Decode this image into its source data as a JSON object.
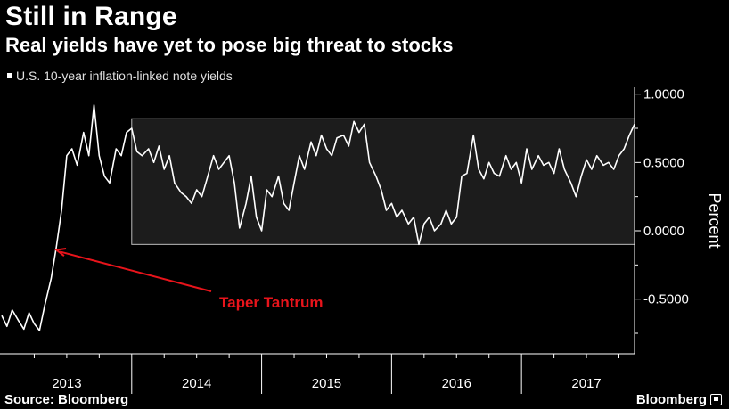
{
  "header": {
    "title": "Still in Range",
    "subtitle": "Real yields have yet to pose big threat to stocks"
  },
  "footer": {
    "source": "Source: Bloomberg",
    "brand": "Bloomberg"
  },
  "colors": {
    "background": "#000000",
    "line": "#ffffff",
    "annotation": "#e8141b",
    "range_band": "#1c1c1c",
    "range_border": "#bdbdbd"
  },
  "chart_data": {
    "type": "line",
    "title": "Still in Range",
    "subtitle": "Real yields have yet to pose big threat to stocks",
    "xlabel": "",
    "ylabel": "Percent",
    "ylim": [
      -0.9,
      1.05
    ],
    "xlim": [
      2013.0,
      2017.87
    ],
    "x_ticks": [
      2013,
      2014,
      2015,
      2016,
      2017
    ],
    "x_tick_labels": [
      "2013",
      "2014",
      "2015",
      "2016",
      "2017"
    ],
    "y_ticks": [
      1.0,
      0.5,
      0.0,
      -0.5
    ],
    "y_tick_labels": [
      "1.0000",
      "0.5000",
      "0.0000",
      "-0.5000"
    ],
    "grid": false,
    "legend": {
      "position": "top-left",
      "entries": [
        "U.S. 10-year inflation-linked note yields"
      ]
    },
    "range_band": {
      "x_start": 2014.0,
      "x_end": 2017.87,
      "y_low": -0.1,
      "y_high": 0.82
    },
    "annotations": [
      {
        "text": "Taper Tantrum",
        "arrow_to_x": 2013.42,
        "arrow_to_y": -0.14
      }
    ],
    "series": [
      {
        "name": "U.S. 10-year inflation-linked note yields",
        "x": [
          2013.0,
          2013.04,
          2013.08,
          2013.13,
          2013.17,
          2013.21,
          2013.25,
          2013.29,
          2013.33,
          2013.38,
          2013.42,
          2013.46,
          2013.5,
          2013.54,
          2013.58,
          2013.63,
          2013.67,
          2013.71,
          2013.75,
          2013.79,
          2013.83,
          2013.88,
          2013.92,
          2013.96,
          2014.0,
          2014.04,
          2014.08,
          2014.13,
          2014.17,
          2014.21,
          2014.25,
          2014.29,
          2014.33,
          2014.38,
          2014.42,
          2014.46,
          2014.5,
          2014.54,
          2014.58,
          2014.63,
          2014.67,
          2014.71,
          2014.75,
          2014.79,
          2014.83,
          2014.88,
          2014.92,
          2014.96,
          2015.0,
          2015.04,
          2015.08,
          2015.13,
          2015.17,
          2015.21,
          2015.25,
          2015.29,
          2015.33,
          2015.38,
          2015.42,
          2015.46,
          2015.5,
          2015.54,
          2015.58,
          2015.63,
          2015.67,
          2015.71,
          2015.75,
          2015.79,
          2015.83,
          2015.88,
          2015.92,
          2015.96,
          2016.0,
          2016.04,
          2016.08,
          2016.13,
          2016.17,
          2016.21,
          2016.25,
          2016.29,
          2016.33,
          2016.38,
          2016.42,
          2016.46,
          2016.5,
          2016.54,
          2016.58,
          2016.63,
          2016.67,
          2016.71,
          2016.75,
          2016.79,
          2016.83,
          2016.88,
          2016.92,
          2016.96,
          2017.0,
          2017.04,
          2017.08,
          2017.13,
          2017.17,
          2017.21,
          2017.25,
          2017.29,
          2017.33,
          2017.38,
          2017.42,
          2017.46,
          2017.5,
          2017.54,
          2017.58,
          2017.63,
          2017.67,
          2017.71,
          2017.75,
          2017.79,
          2017.83,
          2017.87
        ],
        "values": [
          -0.62,
          -0.7,
          -0.58,
          -0.66,
          -0.72,
          -0.6,
          -0.68,
          -0.73,
          -0.55,
          -0.35,
          -0.12,
          0.15,
          0.55,
          0.6,
          0.48,
          0.72,
          0.55,
          0.92,
          0.55,
          0.4,
          0.35,
          0.6,
          0.55,
          0.72,
          0.75,
          0.58,
          0.55,
          0.6,
          0.5,
          0.62,
          0.45,
          0.55,
          0.35,
          0.28,
          0.25,
          0.2,
          0.3,
          0.25,
          0.38,
          0.55,
          0.45,
          0.5,
          0.55,
          0.35,
          0.02,
          0.2,
          0.4,
          0.1,
          0.0,
          0.3,
          0.25,
          0.4,
          0.2,
          0.15,
          0.35,
          0.55,
          0.45,
          0.65,
          0.55,
          0.7,
          0.6,
          0.55,
          0.68,
          0.7,
          0.62,
          0.8,
          0.72,
          0.78,
          0.5,
          0.4,
          0.3,
          0.15,
          0.2,
          0.1,
          0.15,
          0.05,
          0.1,
          -0.1,
          0.05,
          0.1,
          0.0,
          0.05,
          0.15,
          0.05,
          0.1,
          0.4,
          0.42,
          0.7,
          0.45,
          0.38,
          0.5,
          0.42,
          0.4,
          0.55,
          0.45,
          0.5,
          0.35,
          0.6,
          0.45,
          0.55,
          0.48,
          0.5,
          0.42,
          0.6,
          0.45,
          0.35,
          0.25,
          0.4,
          0.52,
          0.45,
          0.55,
          0.48,
          0.5,
          0.45,
          0.55,
          0.6,
          0.7,
          0.78
        ]
      }
    ]
  }
}
